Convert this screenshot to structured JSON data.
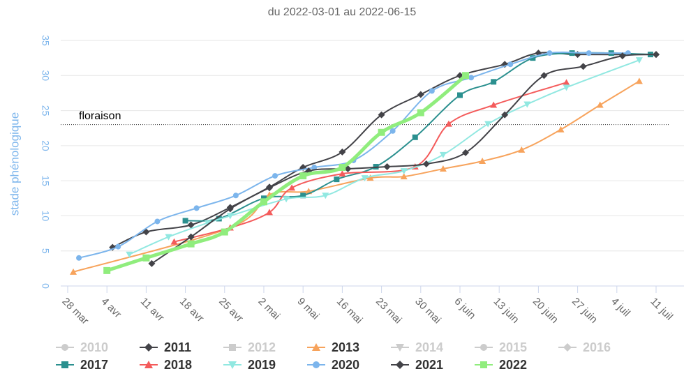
{
  "chart_data": {
    "type": "line",
    "subtitle": "du 2022-03-01 au 2022-06-15",
    "y_label": "stade phénologique",
    "xlim": [
      "03-28",
      "07-11"
    ],
    "xticks": [
      {
        "value": "03-28",
        "label": "28 mar"
      },
      {
        "value": "04-04",
        "label": "4 avr"
      },
      {
        "value": "04-11",
        "label": "11 avr"
      },
      {
        "value": "04-18",
        "label": "18 avr"
      },
      {
        "value": "04-25",
        "label": "25 avr"
      },
      {
        "value": "05-02",
        "label": "2 mai"
      },
      {
        "value": "05-09",
        "label": "9 mai"
      },
      {
        "value": "05-16",
        "label": "16 mai"
      },
      {
        "value": "05-23",
        "label": "23 mai"
      },
      {
        "value": "05-30",
        "label": "30 mai"
      },
      {
        "value": "06-06",
        "label": "6 juin"
      },
      {
        "value": "06-13",
        "label": "13 juin"
      },
      {
        "value": "06-20",
        "label": "20 juin"
      },
      {
        "value": "06-27",
        "label": "27 juin"
      },
      {
        "value": "07-04",
        "label": "4 juil"
      },
      {
        "value": "07-11",
        "label": "11 juil"
      }
    ],
    "ylim": [
      0,
      35
    ],
    "yticks": [
      0,
      5,
      10,
      15,
      20,
      25,
      30,
      35
    ],
    "grid": true,
    "plot_lines": [
      {
        "value": 23,
        "label": "floraison"
      }
    ],
    "legend": "bottom",
    "series": [
      {
        "name": "2010",
        "color": "#cccccc",
        "marker": "circle",
        "visible": false
      },
      {
        "name": "2011",
        "color": "#434348",
        "marker": "diamond",
        "visible": true,
        "x": [
          "04-05",
          "04-11",
          "04-19",
          "04-26",
          "05-03",
          "05-09",
          "05-16",
          "05-23",
          "05-30",
          "06-06",
          "06-14",
          "06-20",
          "06-27",
          "07-11"
        ],
        "values": [
          5.5,
          7.7,
          8.7,
          11.2,
          14.1,
          16.9,
          19.1,
          24.4,
          27.3,
          30,
          31.6,
          33.2,
          33,
          33
        ]
      },
      {
        "name": "2012",
        "color": "#cccccc",
        "marker": "square",
        "visible": false
      },
      {
        "name": "2013",
        "color": "#f7a35c",
        "marker": "triangle",
        "visible": true,
        "x": [
          "03-29",
          "04-26",
          "05-03",
          "05-10",
          "05-21",
          "05-27",
          "06-03",
          "06-10",
          "06-17",
          "06-24",
          "07-01",
          "07-08"
        ],
        "values": [
          2,
          8.3,
          13,
          13.5,
          15.4,
          15.6,
          16.7,
          17.8,
          19.4,
          22.3,
          25.8,
          29.2
        ]
      },
      {
        "name": "2014",
        "color": "#cccccc",
        "marker": "triangle-down",
        "visible": false
      },
      {
        "name": "2015",
        "color": "#cccccc",
        "marker": "circle",
        "visible": false
      },
      {
        "name": "2016",
        "color": "#cccccc",
        "marker": "diamond",
        "visible": false
      },
      {
        "name": "2017",
        "color": "#2b908f",
        "marker": "square",
        "visible": true,
        "x": [
          "04-18",
          "04-24",
          "05-02",
          "05-09",
          "05-15",
          "05-22",
          "05-29",
          "06-06",
          "06-12",
          "06-19",
          "06-26",
          "07-03",
          "07-10"
        ],
        "values": [
          9.3,
          9.6,
          12.5,
          12.9,
          15.2,
          17,
          21.2,
          27.2,
          29.1,
          32.5,
          33.2,
          33.2,
          33
        ]
      },
      {
        "name": "2018",
        "color": "#f45b5b",
        "marker": "triangle",
        "visible": true,
        "x": [
          "04-16",
          "04-26",
          "05-03",
          "05-07",
          "05-16",
          "05-29",
          "06-04",
          "06-12",
          "06-25"
        ],
        "values": [
          6.3,
          8.3,
          10.5,
          14,
          16,
          17,
          23.1,
          25.8,
          29
        ]
      },
      {
        "name": "2019",
        "color": "#91e8e1",
        "marker": "triangle-down",
        "visible": true,
        "x": [
          "04-08",
          "04-15",
          "04-22",
          "04-26",
          "05-06",
          "05-13",
          "05-20",
          "05-27",
          "06-03",
          "06-11",
          "06-18",
          "06-25",
          "07-08"
        ],
        "values": [
          4.5,
          7,
          9,
          10,
          12.4,
          12.9,
          15.4,
          16.4,
          18.7,
          23.1,
          25.9,
          28.3,
          32.2
        ]
      },
      {
        "name": "2020",
        "color": "#7cb5ec",
        "marker": "circle",
        "visible": true,
        "x": [
          "03-30",
          "04-06",
          "04-13",
          "04-20",
          "04-27",
          "05-04",
          "05-11",
          "05-18",
          "05-25",
          "06-01",
          "06-08",
          "06-15",
          "06-22",
          "06-29",
          "07-06"
        ],
        "values": [
          4,
          5.6,
          9.2,
          11.1,
          12.9,
          15.7,
          16.9,
          17.9,
          22.1,
          27.8,
          29.7,
          31.6,
          33.2,
          33.2,
          33.2
        ]
      },
      {
        "name": "2021",
        "color": "#434348",
        "marker": "diamond",
        "visible": true,
        "x": [
          "04-12",
          "04-19",
          "04-26",
          "05-03",
          "05-10",
          "05-17",
          "05-24",
          "05-31",
          "06-07",
          "06-14",
          "06-21",
          "06-28",
          "07-05",
          "07-11"
        ],
        "values": [
          3.2,
          7,
          11,
          14,
          16.4,
          16.7,
          17,
          17.4,
          19,
          24.4,
          30,
          31.3,
          32.8,
          33
        ]
      },
      {
        "name": "2022",
        "color": "#90ed7d",
        "marker": "square",
        "visible": true,
        "line_width": 5,
        "x": [
          "04-04",
          "04-11",
          "04-19",
          "04-25",
          "05-02",
          "05-09",
          "05-16",
          "05-23",
          "05-30",
          "06-07"
        ],
        "values": [
          2.2,
          4,
          6,
          7.7,
          12,
          15.7,
          16.9,
          21.9,
          24.7,
          30
        ]
      }
    ]
  }
}
